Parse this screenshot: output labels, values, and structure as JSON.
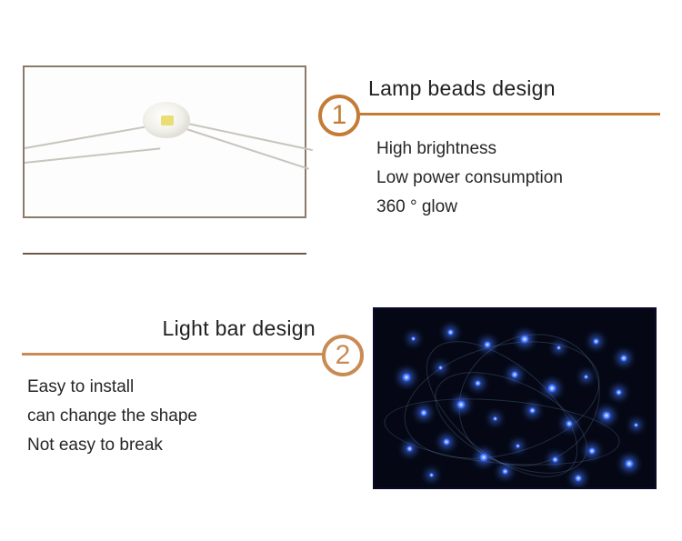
{
  "accent_color_1": "#c47b36",
  "accent_color_2": "#c98b53",
  "section1": {
    "badge_number": "1",
    "title": "Lamp beads design",
    "bullets": [
      "High brightness",
      "Low power consumption",
      "360 ° glow"
    ]
  },
  "section2": {
    "badge_number": "2",
    "title": "Light bar design",
    "bullets": [
      "Easy to install",
      "can change the shape",
      "Not easy to break"
    ]
  },
  "led_image": {
    "bg_color": "#050814",
    "led_color": "#2a57e8",
    "led_glow": "#7da8ff"
  }
}
